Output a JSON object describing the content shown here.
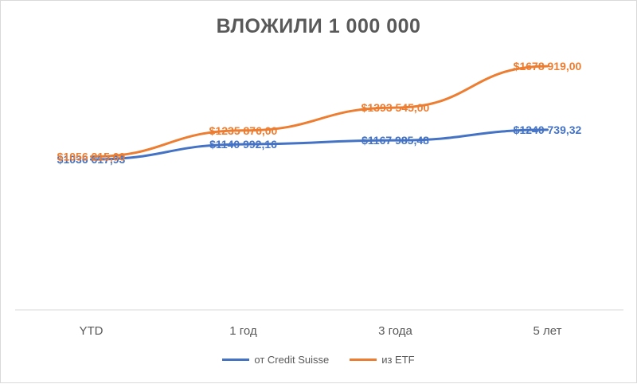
{
  "chart_data": {
    "type": "line",
    "title": "ВЛОЖИЛИ 1 000 000",
    "categories": [
      "YTD",
      "1 год",
      "3 года",
      "5 лет"
    ],
    "ylim": [
      0,
      1800000
    ],
    "grid": false,
    "legend_position": "bottom",
    "series": [
      {
        "name": "от Credit Suisse",
        "color": "#4472C4",
        "values": [
          1036617.93,
          1140992.16,
          1167985.48,
          1240739.32
        ],
        "labels": [
          "$1036 617,93",
          "$1140 992,16",
          "$1167 985,48",
          "$1240 739,32"
        ]
      },
      {
        "name": "из ETF",
        "color": "#ED7D31",
        "values": [
          1056215.0,
          1235876.0,
          1393545.0,
          1678919.0
        ],
        "labels": [
          "$1056 215,00",
          "$1235 876,00",
          "$1393 545,00",
          "$1678 919,00"
        ]
      }
    ]
  }
}
